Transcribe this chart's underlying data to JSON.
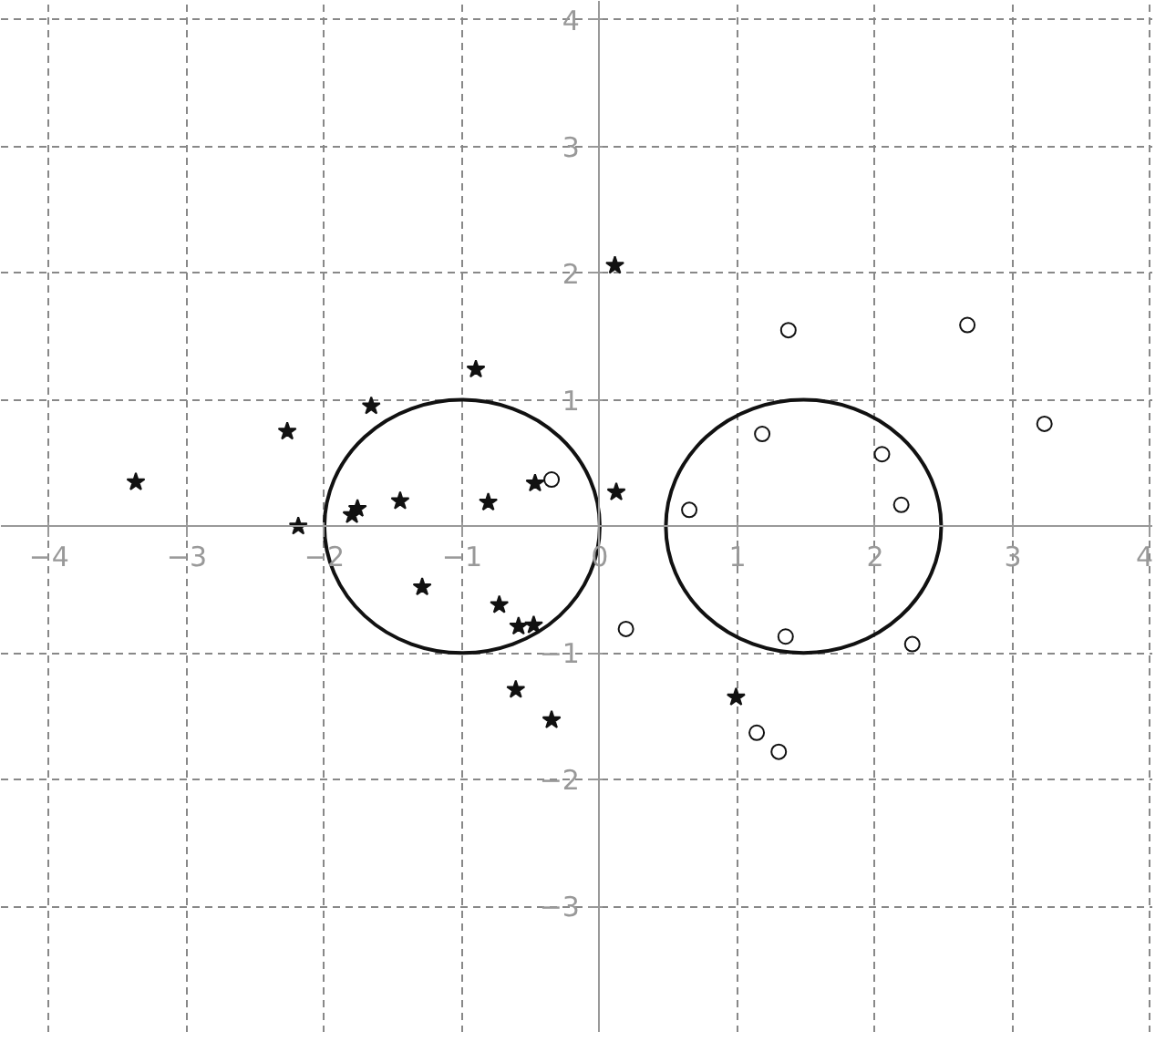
{
  "chart_data": {
    "type": "scatter",
    "xlim": [
      -4.35,
      4.02
    ],
    "ylim": [
      -4,
      4.15
    ],
    "xticks": [
      -4,
      -3,
      -2,
      -1,
      0,
      1,
      2,
      3,
      4
    ],
    "yticks": [
      -3,
      -2,
      -1,
      1,
      2,
      3,
      4
    ],
    "grid": true,
    "series": [
      {
        "color": "#111111",
        "marker": "star",
        "x": [
          -3.37,
          -2.27,
          -1.66,
          -2.19,
          -1.8,
          -1.76,
          -1.45,
          -0.9,
          -0.81,
          -0.47,
          0.11,
          0.12,
          -1.29,
          -0.73,
          -0.59,
          -0.48,
          -0.61,
          -0.35,
          0.99
        ],
        "values": [
          0.35,
          0.75,
          0.95,
          0.0,
          0.09,
          0.14,
          0.2,
          1.24,
          0.19,
          0.34,
          2.06,
          0.27,
          -0.48,
          -0.62,
          -0.79,
          -0.78,
          -1.29,
          -1.53,
          -1.35
        ]
      },
      {
        "color": "#111111",
        "marker": "circle",
        "x": [
          -0.35,
          0.19,
          0.65,
          1.18,
          1.37,
          2.67,
          2.05,
          2.19,
          3.23,
          1.35,
          2.27,
          1.14,
          1.3
        ],
        "values": [
          0.37,
          -0.81,
          0.13,
          0.73,
          1.55,
          1.59,
          0.57,
          0.17,
          0.81,
          -0.87,
          -0.93,
          -1.63,
          -1.78
        ]
      }
    ]
  }
}
